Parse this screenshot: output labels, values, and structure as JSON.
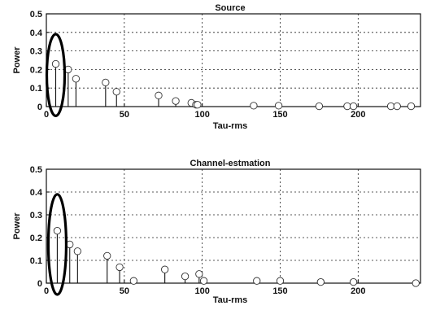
{
  "chart_data": [
    {
      "type": "stem",
      "title": "Source",
      "xlabel": "Tau-rms",
      "ylabel": "Power",
      "xlim": [
        0,
        240
      ],
      "ylim": [
        0,
        0.5
      ],
      "xticks": [
        0,
        50,
        100,
        150,
        200
      ],
      "xtick_labels": [
        "0",
        "50",
        "100",
        "150",
        "200"
      ],
      "yticks": [
        0,
        0.1,
        0.2,
        0.3,
        0.4,
        0.5
      ],
      "ytick_labels": [
        "0",
        "0.1",
        "0.2",
        "0.3",
        "0.4",
        "0.5"
      ],
      "grid": true,
      "x": [
        6,
        14,
        19,
        38,
        45,
        72,
        83,
        93,
        96,
        97,
        133,
        149,
        175,
        193,
        197,
        221,
        225,
        234
      ],
      "y": [
        0.23,
        0.2,
        0.15,
        0.13,
        0.08,
        0.06,
        0.03,
        0.02,
        0.01,
        0.01,
        0.005,
        0.005,
        0.002,
        0.002,
        0.002,
        0.002,
        0.002,
        0.002
      ],
      "highlight": {
        "x": 6,
        "y": 0.17
      }
    },
    {
      "type": "stem",
      "title": "Channel-estmation",
      "xlabel": "Tau-rms",
      "ylabel": "Power",
      "xlim": [
        0,
        240
      ],
      "ylim": [
        0,
        0.5
      ],
      "xticks": [
        0,
        50,
        100,
        150,
        200
      ],
      "xtick_labels": [
        "0",
        "50",
        "100",
        "150",
        "200"
      ],
      "yticks": [
        0,
        0.1,
        0.2,
        0.3,
        0.4,
        0.5
      ],
      "ytick_labels": [
        "0",
        "0.1",
        "0.2",
        "0.3",
        "0.4",
        "0.5"
      ],
      "grid": true,
      "x": [
        7,
        15,
        20,
        39,
        47,
        56,
        76,
        89,
        98,
        101,
        135,
        150,
        176,
        197,
        237
      ],
      "y": [
        0.23,
        0.17,
        0.14,
        0.12,
        0.07,
        0.01,
        0.06,
        0.03,
        0.04,
        0.01,
        0.01,
        0.01,
        0.005,
        0.005,
        0.0
      ],
      "highlight": {
        "x": 7,
        "y": 0.17
      }
    }
  ]
}
